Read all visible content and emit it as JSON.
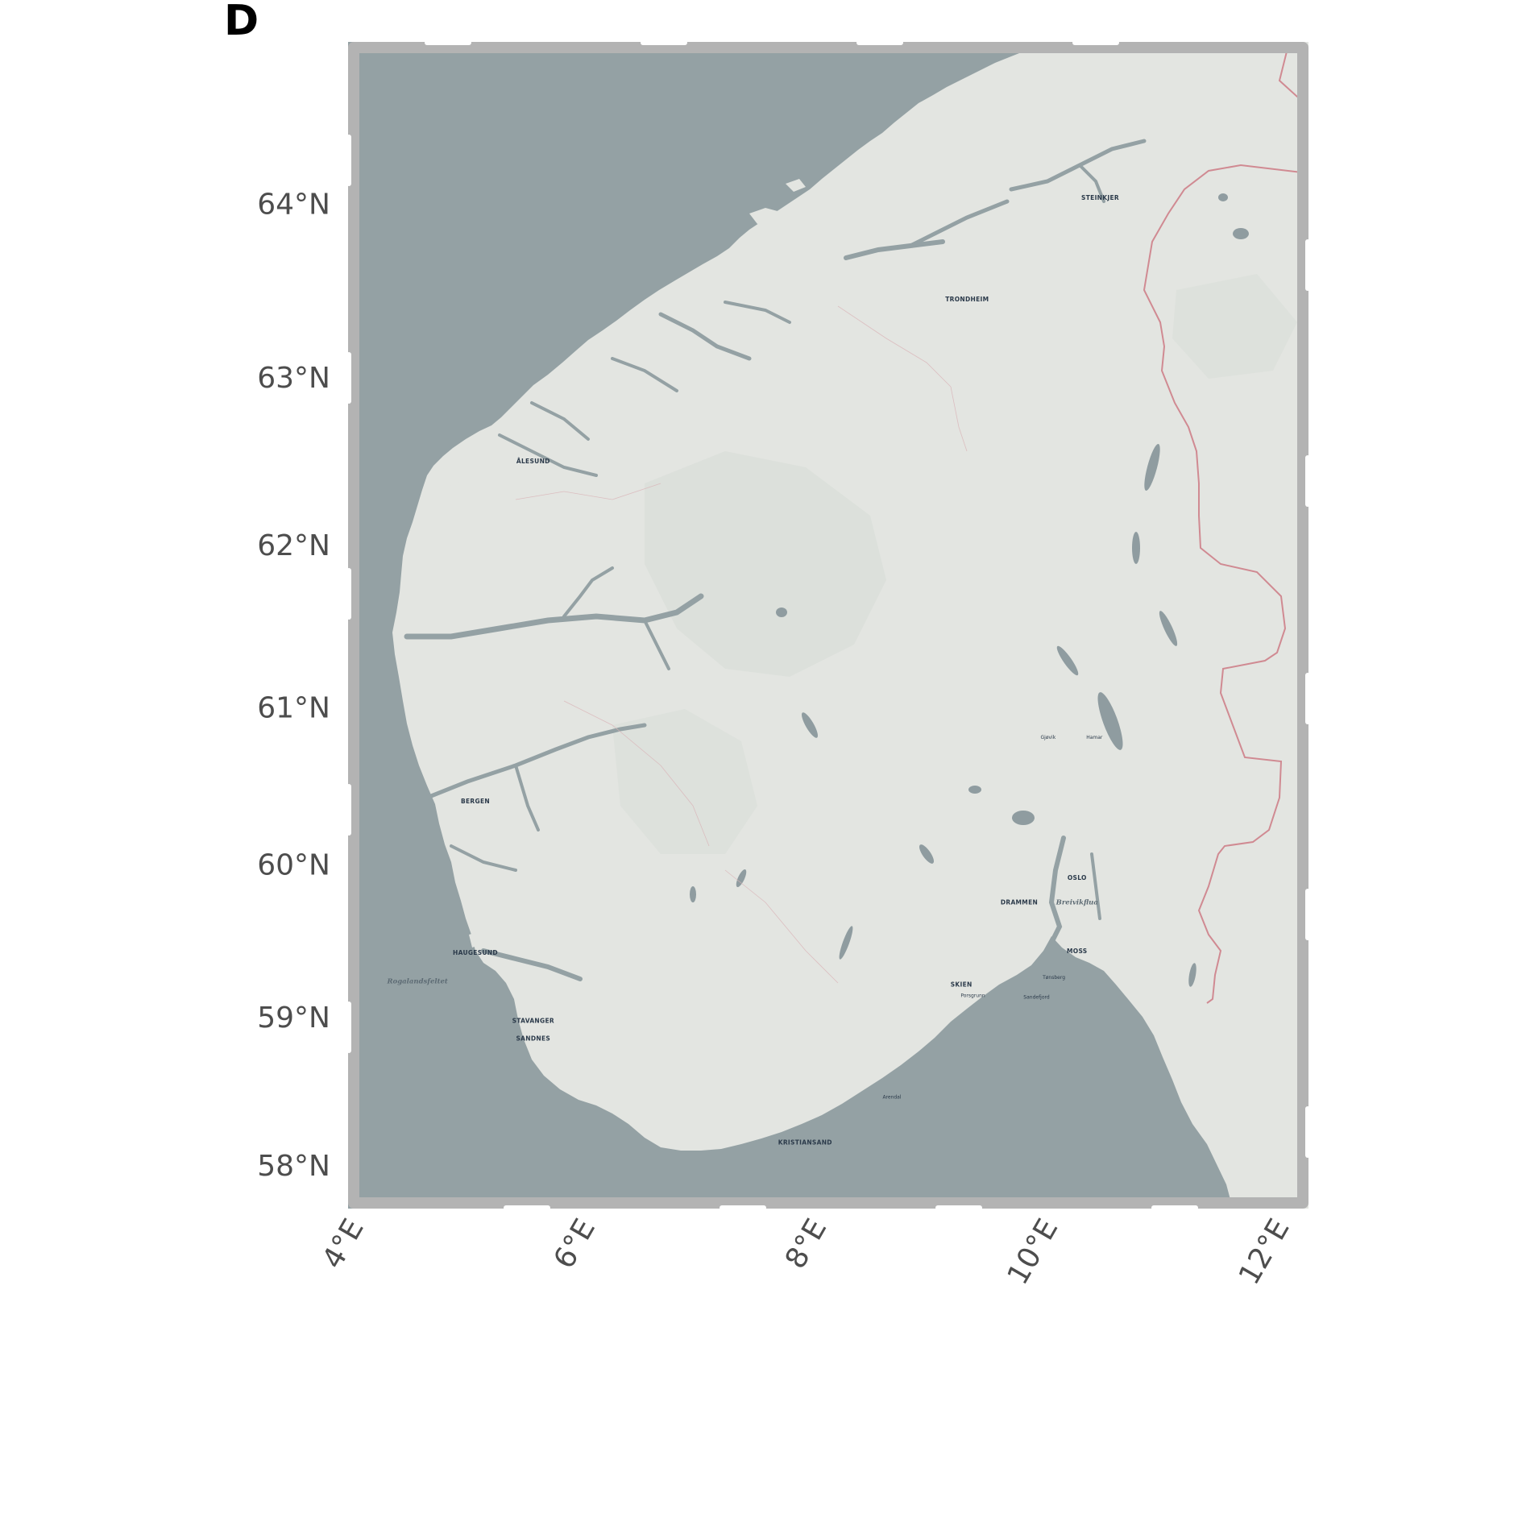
{
  "panel": {
    "label": "D"
  },
  "map": {
    "region": "Southern Norway",
    "extent": {
      "lon_min": 4.0,
      "lon_max": 12.3,
      "lat_min": 57.7,
      "lat_max": 64.9
    },
    "lat_ticks": [
      {
        "value": 64,
        "label": "64°N"
      },
      {
        "value": 63,
        "label": "63°N"
      },
      {
        "value": 62,
        "label": "62°N"
      },
      {
        "value": 61,
        "label": "61°N"
      },
      {
        "value": 60,
        "label": "60°N"
      },
      {
        "value": 59,
        "label": "59°N"
      },
      {
        "value": 58,
        "label": "58°N"
      }
    ],
    "lon_ticks": [
      {
        "value": 4,
        "label": "4°E"
      },
      {
        "value": 6,
        "label": "6°E"
      },
      {
        "value": 8,
        "label": "8°E"
      },
      {
        "value": 10,
        "label": "10°E"
      },
      {
        "value": 12,
        "label": "12°E"
      }
    ],
    "places": [
      {
        "name": "STEINKJER",
        "lon": 10.5,
        "lat": 64.02,
        "style": "city"
      },
      {
        "name": "TRONDHEIM",
        "lon": 9.35,
        "lat": 63.44,
        "style": "city"
      },
      {
        "name": "ÅLESUND",
        "lon": 5.6,
        "lat": 62.49,
        "style": "city"
      },
      {
        "name": "Gjøvik",
        "lon": 10.05,
        "lat": 60.8,
        "style": "small"
      },
      {
        "name": "Hamar",
        "lon": 10.45,
        "lat": 60.8,
        "style": "small"
      },
      {
        "name": "BERGEN",
        "lon": 5.1,
        "lat": 60.39,
        "style": "city"
      },
      {
        "name": "OSLO",
        "lon": 10.3,
        "lat": 59.9,
        "style": "city"
      },
      {
        "name": "DRAMMEN",
        "lon": 9.8,
        "lat": 59.74,
        "style": "city"
      },
      {
        "name": "Breivikflua",
        "lon": 10.3,
        "lat": 59.74,
        "style": "region"
      },
      {
        "name": "MOSS",
        "lon": 10.3,
        "lat": 59.42,
        "style": "city"
      },
      {
        "name": "HAUGESUND",
        "lon": 5.1,
        "lat": 59.41,
        "style": "city"
      },
      {
        "name": "Rogalandsfeltet",
        "lon": 4.6,
        "lat": 59.22,
        "style": "region"
      },
      {
        "name": "Tønsberg",
        "lon": 10.1,
        "lat": 59.25,
        "style": "small"
      },
      {
        "name": "SKIEN",
        "lon": 9.3,
        "lat": 59.2,
        "style": "city"
      },
      {
        "name": "Porsgrunn",
        "lon": 9.4,
        "lat": 59.13,
        "style": "small"
      },
      {
        "name": "Sandefjord",
        "lon": 9.95,
        "lat": 59.12,
        "style": "small"
      },
      {
        "name": "STAVANGER",
        "lon": 5.6,
        "lat": 58.96,
        "style": "city"
      },
      {
        "name": "SANDNES",
        "lon": 5.6,
        "lat": 58.84,
        "style": "city"
      },
      {
        "name": "Arendal",
        "lon": 8.7,
        "lat": 58.45,
        "style": "small"
      },
      {
        "name": "KRISTIANSAND",
        "lon": 7.95,
        "lat": 58.14,
        "style": "city"
      }
    ],
    "colors": {
      "water": "#94a1a4",
      "land": "#e3e5e1",
      "land_shade": "#d8ddd8",
      "lake": "#8f9ca0",
      "border": "#d08a92",
      "frame": "#b3b3b3",
      "tick_text": "#4d4d4d"
    }
  }
}
